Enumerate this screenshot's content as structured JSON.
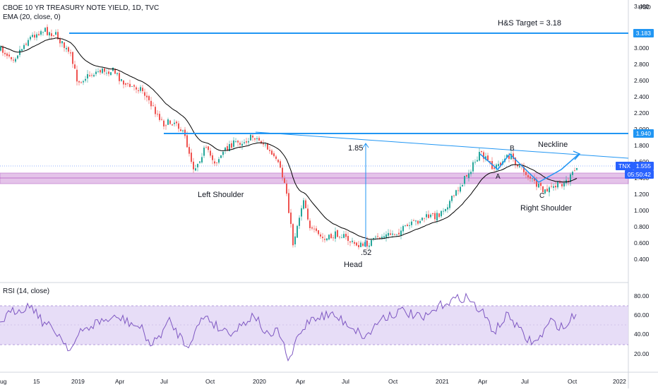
{
  "header": {
    "symbol_line": "CBOE 10 YR TREASURY NOTE YIELD, 1D, TVC",
    "ema_line": "EMA (20, close, 0)",
    "rsi_line": "RSI (14, close)"
  },
  "price_axis": {
    "currency": "USD",
    "ticks": [
      "3.400",
      "3.000",
      "2.800",
      "2.600",
      "2.400",
      "2.200",
      "2.000",
      "1.800",
      "1.600",
      "1.400",
      "1.200",
      "1.000",
      "0.800",
      "0.600",
      "0.400"
    ],
    "badge_target": "3.183",
    "badge_resistance": "1.940",
    "badge_last_symbol": "TNX",
    "badge_last_price": "1.555",
    "badge_countdown": "05:50:42"
  },
  "rsi_axis": {
    "ticks": [
      "80.00",
      "60.00",
      "40.00",
      "20.00"
    ]
  },
  "time_axis": {
    "ticks": [
      "ug",
      "15",
      "2019",
      "Apr",
      "Jul",
      "Oct",
      "2020",
      "Apr",
      "Jul",
      "Oct",
      "2021",
      "Apr",
      "Jul",
      "Oct",
      "2022"
    ]
  },
  "annotations": {
    "target": "H&S Target = 3.18",
    "neckline": "Neckline",
    "left_shoulder": "Left Shoulder",
    "head": "Head",
    "right_shoulder": "Right Shoulder",
    "head_value": ".52",
    "measure_value": "1.85",
    "point_a": "A",
    "point_b": "B",
    "point_c": "C"
  },
  "colors": {
    "up": "#26a69a",
    "down": "#ef5350",
    "ema": "#000000",
    "drawing": "#2196f3",
    "zone": "#9c27b0",
    "rsi_line": "#7e57c2",
    "rsi_band": "#e1d5f5",
    "last_price": "#2962ff"
  },
  "chart_data": {
    "type": "candlestick",
    "price_ylim": [
      0.4,
      3.4
    ],
    "rsi_ylim": [
      20,
      80
    ],
    "levels": {
      "target": 3.183,
      "resistance": 1.94,
      "last": 1.555
    },
    "zone": [
      1.33,
      1.45
    ]
  }
}
